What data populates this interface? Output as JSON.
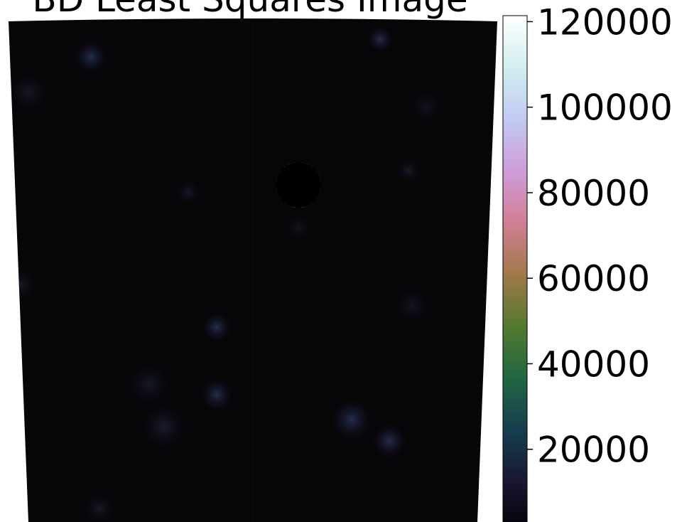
{
  "chart_data": {
    "type": "image",
    "title": "BD Least Squares Image",
    "zlim": [
      0,
      121400
    ],
    "zticks": [
      20000,
      40000,
      60000,
      80000,
      100000,
      120000
    ],
    "colormap": [
      "#000000",
      "#1a1530",
      "#163d4e",
      "#1f6642",
      "#53792f",
      "#a07949",
      "#d07e93",
      "#cf9cda",
      "#c1caf3",
      "#d2eeef",
      "#ffffff"
    ]
  }
}
